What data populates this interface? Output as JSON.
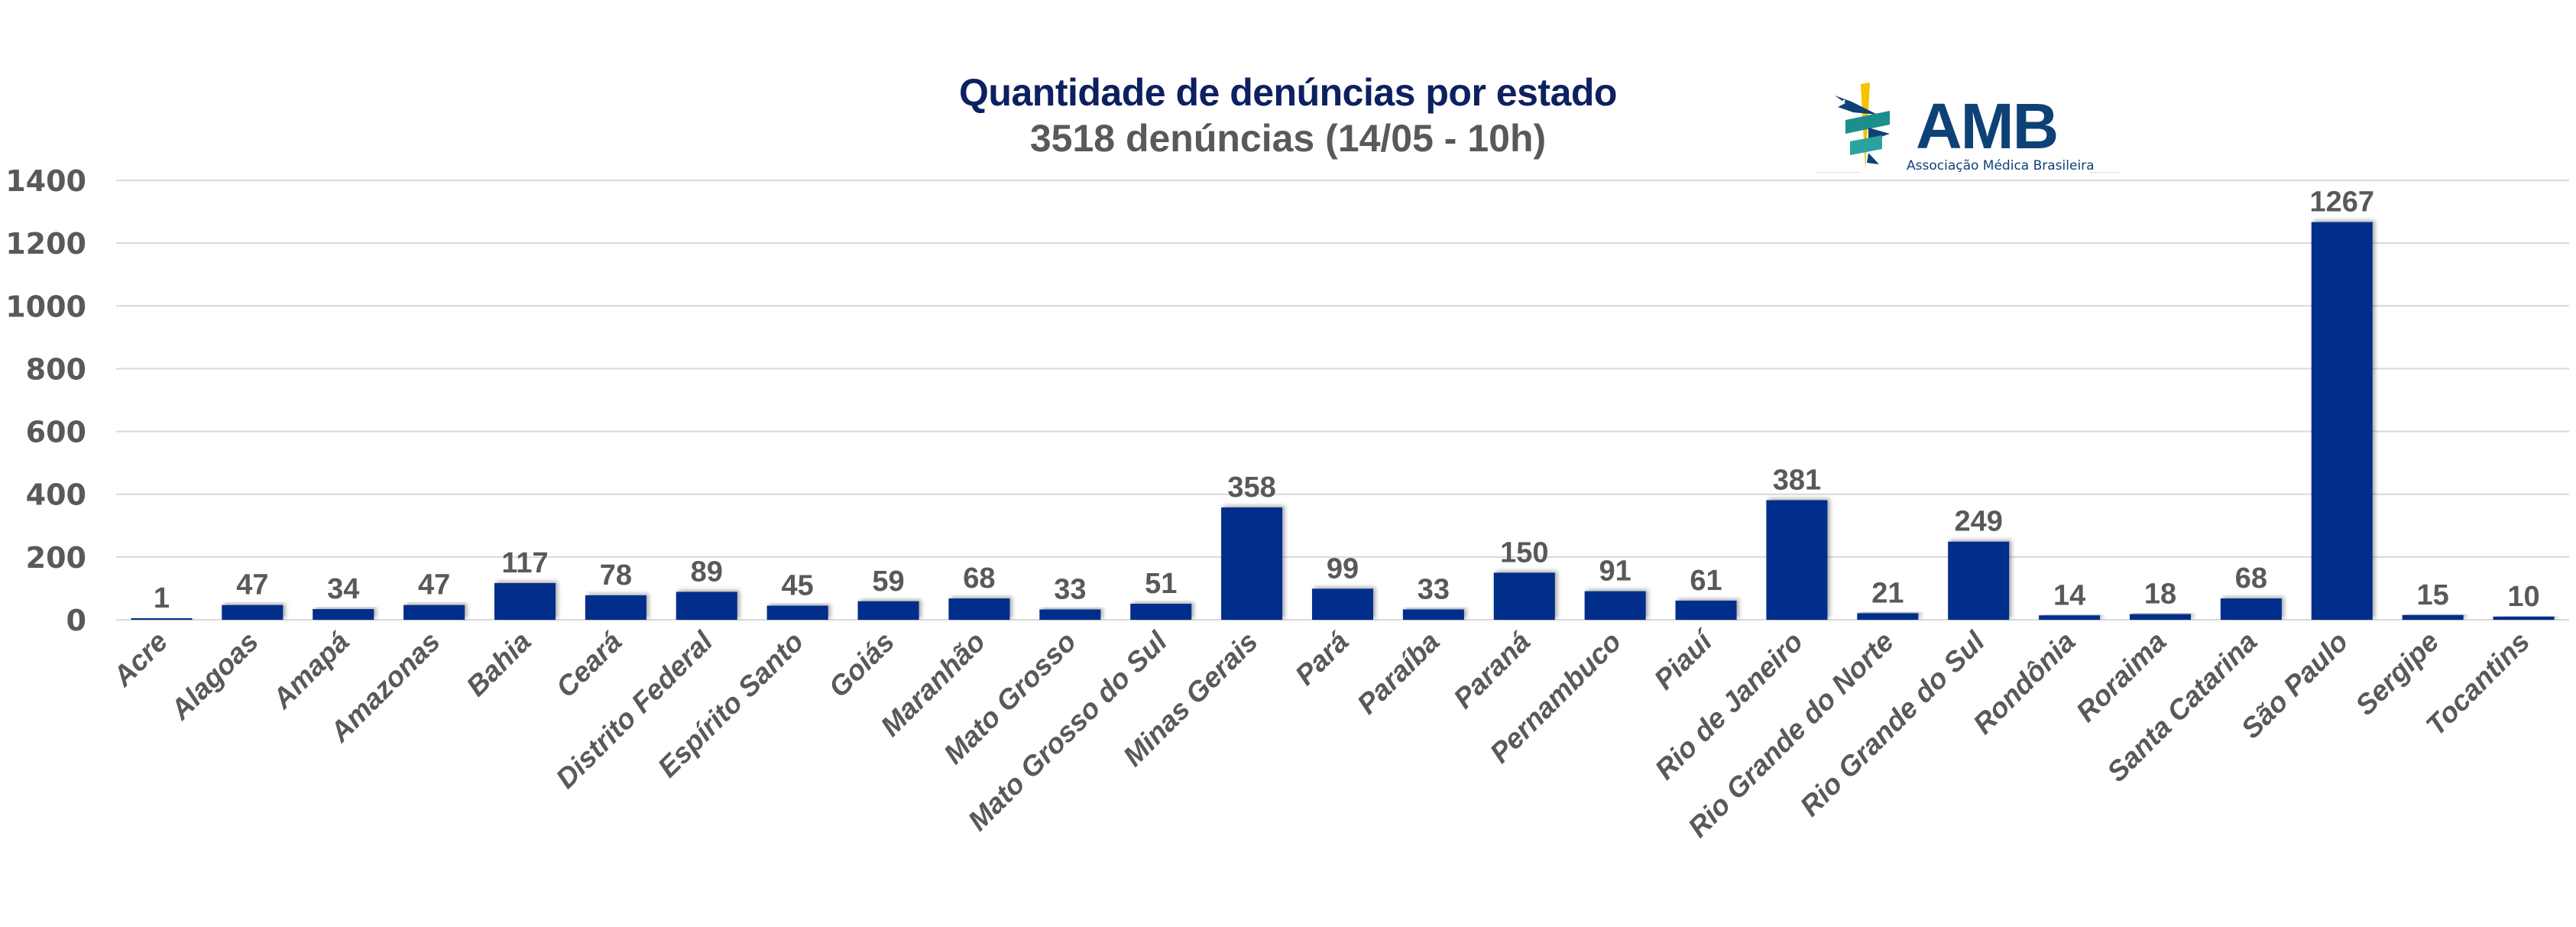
{
  "chart_data": {
    "type": "bar",
    "title": "Quantidade de denúncias por estado",
    "subtitle": "3518 denúncias (14/05 - 10h)",
    "xlabel": "",
    "ylabel": "",
    "ylim": [
      0,
      1400
    ],
    "yticks": [
      0,
      200,
      400,
      600,
      800,
      1000,
      1200,
      1400
    ],
    "ytick_labels": [
      "0",
      "200",
      "400",
      "600",
      "800",
      "1000",
      "1200",
      "1400"
    ],
    "grid": true,
    "legend": "none",
    "categories": [
      "Acre",
      "Alagoas",
      "Amapá",
      "Amazonas",
      "Bahia",
      "Ceará",
      "Distrito Federal",
      "Espírito Santo",
      "Goiás",
      "Maranhão",
      "Mato Grosso",
      "Mato Grosso do Sul",
      "Minas Gerais",
      "Pará",
      "Paraíba",
      "Paraná",
      "Pernambuco",
      "Piauí",
      "Rio de Janeiro",
      "Rio Grande do Norte",
      "Rio Grande do Sul",
      "Rondônia",
      "Roraima",
      "Santa Catarina",
      "São Paulo",
      "Sergipe",
      "Tocantins"
    ],
    "values": [
      1,
      47,
      34,
      47,
      117,
      78,
      89,
      45,
      59,
      68,
      33,
      51,
      358,
      99,
      33,
      150,
      91,
      61,
      381,
      21,
      249,
      14,
      18,
      68,
      1267,
      15,
      10
    ],
    "data_labels": [
      "1",
      "47",
      "34",
      "47",
      "117",
      "78",
      "89",
      "45",
      "59",
      "68",
      "33",
      "51",
      "358",
      "99",
      "33",
      "150",
      "91",
      "61",
      "381",
      "21",
      "249",
      "14",
      "18",
      "68",
      "1267",
      "15",
      "10"
    ],
    "bar_color": "#002e8a",
    "text_color": "#595959",
    "title_color": "#0d2060",
    "grid_color": "#d9d9d9"
  },
  "logo": {
    "name": "AMB",
    "tagline": "Associação Médica Brasileira",
    "colors": {
      "navy": "#0e4176",
      "teal": "#1b8f8c",
      "yellow": "#f4c400"
    }
  }
}
